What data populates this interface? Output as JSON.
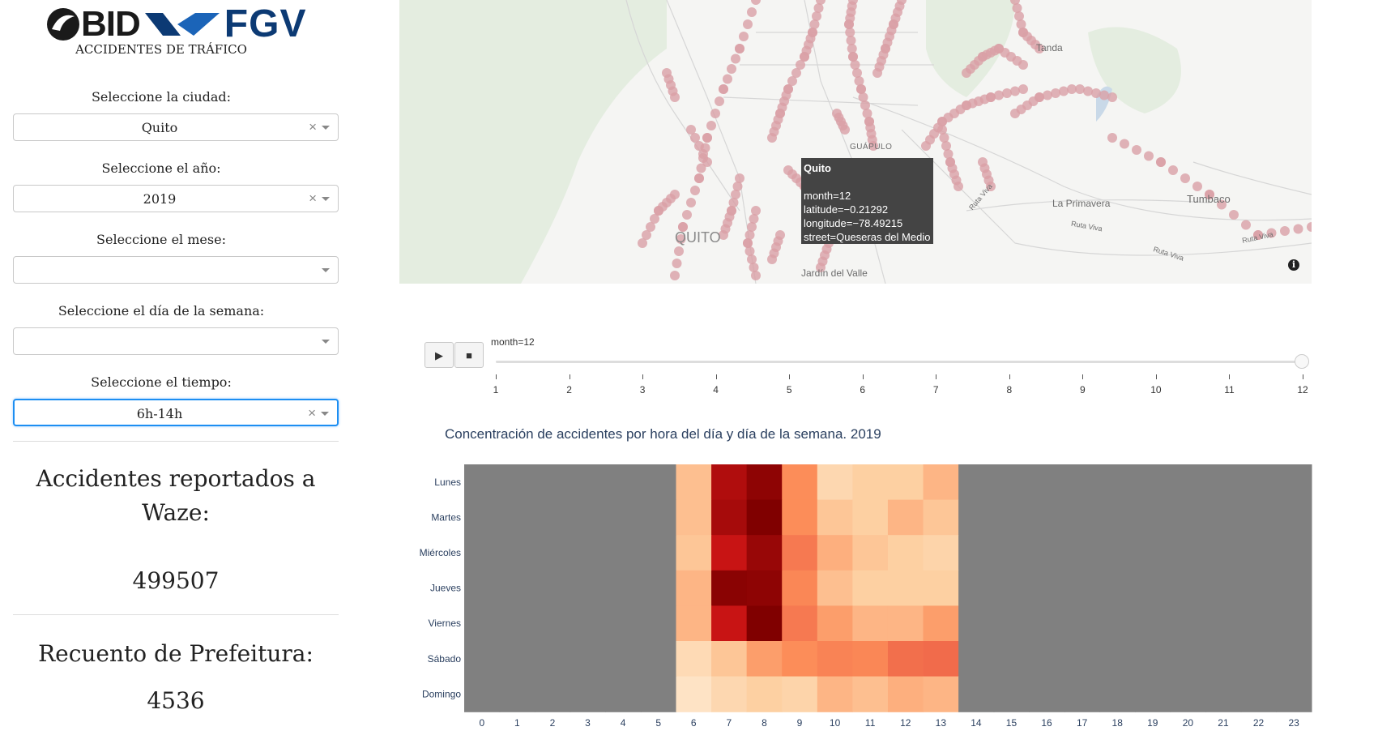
{
  "sidebar": {
    "logo_bid": "BID",
    "logo_fgv": "FGV",
    "app_title": "ACCIDENTES DE TRÁFICO",
    "city_label": "Seleccione la ciudad:",
    "city_value": "Quito",
    "year_label": "Seleccione el año:",
    "year_value": "2019",
    "month_label": "Seleccione el mese:",
    "month_value": "",
    "weekday_label": "Seleccione el día de la semana:",
    "weekday_value": "",
    "time_label": "Seleccione el tiempo:",
    "time_value": "6h-14h",
    "waze_label": "Accidentes reportados a Waze:",
    "waze_value": "499507",
    "prefeitura_label": "Recuento de Prefeitura:",
    "prefeitura_value": "4536"
  },
  "map": {
    "labels": {
      "tanda": "Tanda",
      "cuapulo": "GUÁPULO",
      "la_primavera": "La Primavera",
      "tumbaco": "Tumbaco",
      "quito": "QUITO",
      "jardin": "Jardín del Valle",
      "ruta_viva_1": "Ruta Viva",
      "ruta_viva_2": "Ruta Viva",
      "ruta_viva_3": "Ruta Viva",
      "ruta_viva_4": "Ruta Viva"
    },
    "tooltip": {
      "title": "Quito",
      "month": "month=12",
      "latitude": "latitude=−0.21292",
      "longitude": "longitude=−78.49215",
      "street": "street=Queseras del Medio"
    },
    "point_color": "#d9a0a6",
    "info_icon": "i"
  },
  "controls": {
    "play_icon": "▶",
    "stop_icon": "■",
    "slider_label": "month=12",
    "slider_value": 12,
    "ticks": [
      "1",
      "2",
      "3",
      "4",
      "5",
      "6",
      "7",
      "8",
      "9",
      "10",
      "11",
      "12"
    ]
  },
  "heatmap_title": "Concentración de accidentes por hora del día y día de la semana. 2019",
  "chart_data": {
    "type": "heatmap",
    "title": "Concentración de accidentes por hora del día y día de la semana. 2019",
    "x": [
      "0",
      "1",
      "2",
      "3",
      "4",
      "5",
      "6",
      "7",
      "8",
      "9",
      "10",
      "11",
      "12",
      "13",
      "14",
      "15",
      "16",
      "17",
      "18",
      "19",
      "20",
      "21",
      "22",
      "23"
    ],
    "y": [
      "Lunes",
      "Martes",
      "Miércoles",
      "Jueves",
      "Viernes",
      "Sábado",
      "Domingo"
    ],
    "active_hours": [
      6,
      13
    ],
    "inactive_color": "#808080",
    "z": [
      [
        0.3,
        0.9,
        0.97,
        0.45,
        0.2,
        0.25,
        0.25,
        0.33
      ],
      [
        0.3,
        0.92,
        1.0,
        0.45,
        0.28,
        0.25,
        0.33,
        0.28
      ],
      [
        0.28,
        0.85,
        0.95,
        0.55,
        0.35,
        0.28,
        0.25,
        0.22
      ],
      [
        0.33,
        0.98,
        0.97,
        0.48,
        0.3,
        0.25,
        0.25,
        0.25
      ],
      [
        0.33,
        0.85,
        1.0,
        0.55,
        0.4,
        0.33,
        0.33,
        0.4
      ],
      [
        0.18,
        0.28,
        0.4,
        0.45,
        0.5,
        0.48,
        0.6,
        0.62
      ],
      [
        0.12,
        0.2,
        0.25,
        0.22,
        0.33,
        0.3,
        0.35,
        0.33
      ]
    ]
  }
}
